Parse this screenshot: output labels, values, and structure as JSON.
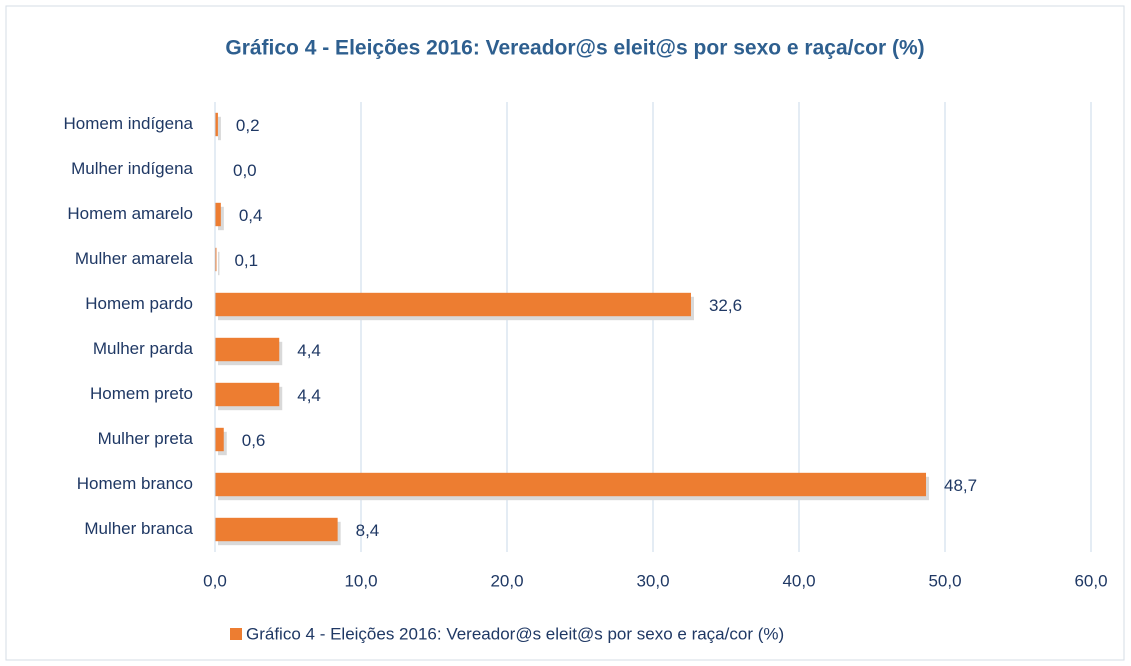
{
  "chart_data": {
    "type": "hbar",
    "title": "Gráfico 4 - Eleições 2016: Vereador@s eleit@s por sexo e raça/cor (%)",
    "categories": [
      "Homem indígena",
      "Mulher indígena",
      "Homem amarelo",
      "Mulher amarela",
      "Homem pardo",
      "Mulher parda",
      "Homem preto",
      "Mulher preta",
      "Homem branco",
      "Mulher branca"
    ],
    "series": [
      {
        "name": "Gráfico 4 - Eleições 2016: Vereador@s eleit@s por sexo e raça/cor (%)",
        "color": "#ed7d31",
        "values": [
          0.2,
          0.0,
          0.4,
          0.1,
          32.6,
          4.4,
          4.4,
          0.6,
          48.7,
          8.4
        ],
        "value_labels": [
          "0,2",
          "0,0",
          "0,4",
          "0,1",
          "32,6",
          "4,4",
          "4,4",
          "0,6",
          "48,7",
          "8,4"
        ]
      }
    ],
    "xlim": [
      0,
      60
    ],
    "xticks": [
      {
        "value": 0,
        "label": "0,0"
      },
      {
        "value": 10,
        "label": "10,0"
      },
      {
        "value": 20,
        "label": "20,0"
      },
      {
        "value": 30,
        "label": "30,0"
      },
      {
        "value": 40,
        "label": "40,0"
      },
      {
        "value": 50,
        "label": "50,0"
      },
      {
        "value": 60,
        "label": "60,0"
      }
    ],
    "grid": true,
    "legend": "bottom"
  }
}
